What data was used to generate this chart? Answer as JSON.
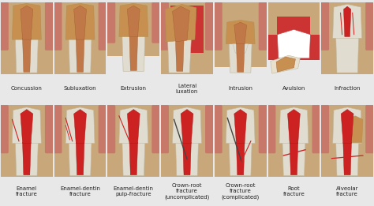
{
  "row1_labels": [
    "Concussion",
    "Subluxation",
    "Extrusion",
    "Lateral\nluxation",
    "Intrusion",
    "Avulsion",
    "Infraction"
  ],
  "row2_labels": [
    "Enamel\nfracture",
    "Enamel-dentin\nfracture",
    "Enamel-dentin\npulp-fracture",
    "Crown-root\nfracture\n(uncomplicated)",
    "Crown-root\nfracture\n(complicated)",
    "Root\nfracture",
    "Alveolar\nfracture"
  ],
  "bg_color": "#e8e8e8",
  "cell_bg": "#ffffff",
  "label_bg": "#b8d4e8",
  "label_color": "#222222",
  "bone_color": "#c8a87a",
  "bone_dark": "#b09060",
  "gum_color": "#c87868",
  "dentin_color": "#c89050",
  "enamel_color": "#e8e0cc",
  "root_white": "#e0dcd0",
  "pulp_red": "#cc2222",
  "pulp_dark": "#aa1111",
  "crack_color": "#cc2222",
  "dark_crack": "#444444",
  "label_fontsize": 5.0,
  "fig_width": 4.74,
  "fig_height": 2.61
}
